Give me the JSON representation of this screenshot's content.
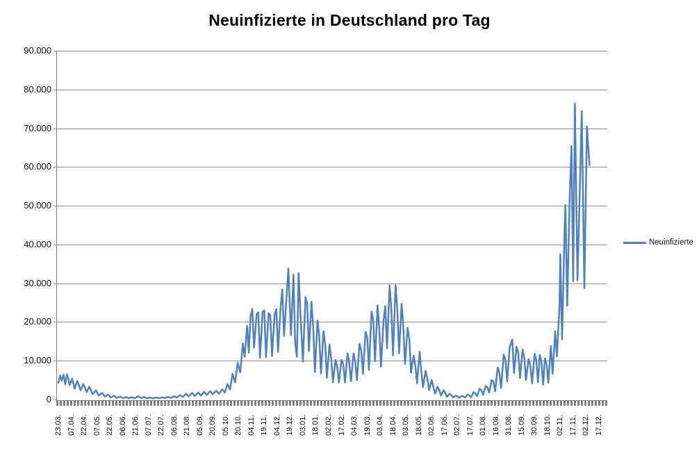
{
  "chart_data": {
    "type": "line",
    "title": "Neuinfizierte in Deutschland pro Tag",
    "xlabel": "",
    "ylabel": "",
    "ylim": [
      0,
      90000
    ],
    "ytick_labels": [
      "0",
      "10.000",
      "20.000",
      "30.000",
      "40.000",
      "50.000",
      "60.000",
      "70.000",
      "80.000",
      "90.000"
    ],
    "xtick_labels": [
      "23.03.",
      "07.04.",
      "22.04.",
      "07.05.",
      "22.05.",
      "06.06.",
      "21.06.",
      "07.07.",
      "22.07.",
      "06.08.",
      "21.08.",
      "05.09.",
      "20.09.",
      "05.10.",
      "20.10.",
      "04.11.",
      "19.11.",
      "04.12.",
      "19.12.",
      "03.01.",
      "18.01.",
      "02.02.",
      "17.02.",
      "04.03.",
      "19.03.",
      "03.04.",
      "18.04.",
      "03.05.",
      "18.05.",
      "02.06.",
      "17.06.",
      "02.07.",
      "17.07.",
      "01.08.",
      "16.08.",
      "31.08.",
      "15.09.",
      "30.09.",
      "18.10.",
      "02.11.",
      "17.11.",
      "02.12.",
      "17.12."
    ],
    "x_units_per_tick": 15,
    "x_total_units": 635,
    "grid": "horizontal",
    "legend_position": "right",
    "line_color": "#4f81bd",
    "gridline_color": "#8f8f8f",
    "axis_color": "#7f7f7f",
    "series": [
      {
        "name": "Neuinfizierte",
        "points": [
          [
            0,
            4300
          ],
          [
            2,
            6200
          ],
          [
            4,
            4900
          ],
          [
            6,
            6400
          ],
          [
            8,
            3900
          ],
          [
            10,
            6500
          ],
          [
            12,
            5000
          ],
          [
            13,
            3700
          ],
          [
            16,
            5400
          ],
          [
            19,
            2800
          ],
          [
            22,
            4800
          ],
          [
            26,
            2400
          ],
          [
            29,
            4000
          ],
          [
            33,
            1900
          ],
          [
            36,
            3300
          ],
          [
            40,
            1400
          ],
          [
            44,
            2400
          ],
          [
            47,
            1000
          ],
          [
            51,
            1700
          ],
          [
            54,
            750
          ],
          [
            58,
            1250
          ],
          [
            61,
            550
          ],
          [
            65,
            950
          ],
          [
            68,
            420
          ],
          [
            72,
            780
          ],
          [
            75,
            340
          ],
          [
            79,
            630
          ],
          [
            82,
            330
          ],
          [
            86,
            580
          ],
          [
            89,
            300
          ],
          [
            93,
            850
          ],
          [
            96,
            380
          ],
          [
            100,
            620
          ],
          [
            103,
            290
          ],
          [
            107,
            520
          ],
          [
            110,
            290
          ],
          [
            114,
            480
          ],
          [
            117,
            330
          ],
          [
            121,
            570
          ],
          [
            124,
            380
          ],
          [
            128,
            720
          ],
          [
            131,
            430
          ],
          [
            135,
            880
          ],
          [
            138,
            520
          ],
          [
            142,
            1150
          ],
          [
            145,
            680
          ],
          [
            149,
            1450
          ],
          [
            152,
            780
          ],
          [
            156,
            1700
          ],
          [
            159,
            920
          ],
          [
            163,
            1800
          ],
          [
            166,
            1020
          ],
          [
            170,
            1950
          ],
          [
            173,
            1200
          ],
          [
            177,
            2150
          ],
          [
            180,
            1350
          ],
          [
            184,
            2300
          ],
          [
            187,
            1500
          ],
          [
            191,
            2600
          ],
          [
            194,
            1800
          ],
          [
            197,
            4000
          ],
          [
            200,
            2600
          ],
          [
            203,
            6600
          ],
          [
            206,
            4400
          ],
          [
            209,
            9500
          ],
          [
            212,
            7000
          ],
          [
            215,
            14500
          ],
          [
            217,
            11000
          ],
          [
            220,
            19000
          ],
          [
            222,
            12100
          ],
          [
            224,
            21500
          ],
          [
            226,
            23400
          ],
          [
            228,
            13400
          ],
          [
            231,
            22000
          ],
          [
            233,
            22500
          ],
          [
            235,
            10800
          ],
          [
            238,
            22600
          ],
          [
            240,
            23000
          ],
          [
            242,
            10900
          ],
          [
            245,
            22300
          ],
          [
            247,
            21700
          ],
          [
            249,
            11200
          ],
          [
            252,
            22000
          ],
          [
            254,
            23300
          ],
          [
            256,
            12300
          ],
          [
            259,
            23700
          ],
          [
            261,
            28400
          ],
          [
            263,
            16400
          ],
          [
            266,
            26900
          ],
          [
            268,
            33800
          ],
          [
            270,
            22800
          ],
          [
            271,
            16600
          ],
          [
            274,
            32200
          ],
          [
            276,
            14500
          ],
          [
            278,
            11000
          ],
          [
            280,
            32600
          ],
          [
            282,
            22900
          ],
          [
            285,
            9800
          ],
          [
            288,
            26400
          ],
          [
            290,
            24700
          ],
          [
            292,
            12500
          ],
          [
            295,
            25200
          ],
          [
            297,
            18700
          ],
          [
            299,
            7100
          ],
          [
            302,
            20400
          ],
          [
            304,
            16400
          ],
          [
            306,
            6700
          ],
          [
            309,
            17600
          ],
          [
            311,
            14000
          ],
          [
            313,
            5600
          ],
          [
            316,
            14200
          ],
          [
            318,
            10500
          ],
          [
            320,
            4500
          ],
          [
            323,
            10200
          ],
          [
            325,
            8400
          ],
          [
            327,
            4400
          ],
          [
            330,
            10200
          ],
          [
            332,
            9200
          ],
          [
            334,
            4400
          ],
          [
            337,
            11900
          ],
          [
            339,
            9600
          ],
          [
            341,
            4700
          ],
          [
            344,
            11900
          ],
          [
            346,
            9600
          ],
          [
            348,
            5000
          ],
          [
            351,
            14400
          ],
          [
            353,
            12700
          ],
          [
            355,
            6600
          ],
          [
            358,
            17500
          ],
          [
            360,
            16000
          ],
          [
            362,
            7700
          ],
          [
            365,
            22700
          ],
          [
            367,
            20500
          ],
          [
            369,
            9900
          ],
          [
            372,
            24300
          ],
          [
            374,
            18100
          ],
          [
            376,
            8500
          ],
          [
            379,
            20400
          ],
          [
            381,
            24100
          ],
          [
            383,
            13200
          ],
          [
            386,
            29400
          ],
          [
            388,
            23800
          ],
          [
            390,
            11400
          ],
          [
            393,
            29500
          ],
          [
            395,
            23400
          ],
          [
            397,
            11900
          ],
          [
            400,
            24700
          ],
          [
            402,
            18900
          ],
          [
            404,
            9200
          ],
          [
            407,
            18500
          ],
          [
            409,
            15700
          ],
          [
            411,
            6900
          ],
          [
            414,
            11300
          ],
          [
            416,
            8800
          ],
          [
            418,
            4200
          ],
          [
            421,
            12300
          ],
          [
            423,
            7100
          ],
          [
            425,
            3200
          ],
          [
            428,
            7400
          ],
          [
            430,
            5400
          ],
          [
            432,
            2400
          ],
          [
            435,
            5000
          ],
          [
            437,
            3300
          ],
          [
            439,
            1500
          ],
          [
            442,
            3300
          ],
          [
            444,
            2300
          ],
          [
            446,
            1000
          ],
          [
            449,
            2400
          ],
          [
            451,
            1700
          ],
          [
            453,
            700
          ],
          [
            456,
            1500
          ],
          [
            458,
            1100
          ],
          [
            460,
            500
          ],
          [
            463,
            1000
          ],
          [
            465,
            800
          ],
          [
            467,
            440
          ],
          [
            470,
            950
          ],
          [
            472,
            750
          ],
          [
            474,
            500
          ],
          [
            477,
            1300
          ],
          [
            479,
            1000
          ],
          [
            481,
            600
          ],
          [
            484,
            1900
          ],
          [
            486,
            1550
          ],
          [
            488,
            850
          ],
          [
            491,
            2800
          ],
          [
            493,
            2400
          ],
          [
            495,
            1200
          ],
          [
            498,
            3500
          ],
          [
            500,
            3100
          ],
          [
            502,
            1800
          ],
          [
            505,
            5000
          ],
          [
            507,
            4700
          ],
          [
            509,
            2100
          ],
          [
            512,
            8300
          ],
          [
            514,
            7000
          ],
          [
            516,
            3000
          ],
          [
            519,
            11600
          ],
          [
            521,
            10300
          ],
          [
            523,
            4700
          ],
          [
            526,
            13500
          ],
          [
            529,
            15500
          ],
          [
            531,
            6800
          ],
          [
            534,
            13600
          ],
          [
            536,
            12000
          ],
          [
            538,
            5500
          ],
          [
            541,
            12900
          ],
          [
            543,
            10800
          ],
          [
            545,
            5000
          ],
          [
            548,
            10400
          ],
          [
            550,
            8900
          ],
          [
            552,
            4200
          ],
          [
            555,
            11800
          ],
          [
            557,
            10100
          ],
          [
            559,
            4500
          ],
          [
            561,
            11500
          ],
          [
            563,
            9700
          ],
          [
            565,
            3800
          ],
          [
            567,
            10600
          ],
          [
            569,
            9000
          ],
          [
            571,
            4300
          ],
          [
            574,
            13800
          ],
          [
            576,
            6600
          ],
          [
            579,
            17600
          ],
          [
            581,
            11100
          ],
          [
            584,
            24000
          ],
          [
            585,
            37500
          ],
          [
            587,
            15500
          ],
          [
            590,
            44000
          ],
          [
            591,
            50200
          ],
          [
            593,
            24200
          ],
          [
            596,
            52800
          ],
          [
            598,
            65400
          ],
          [
            600,
            30500
          ],
          [
            602,
            76400
          ],
          [
            605,
            30800
          ],
          [
            610,
            74400
          ],
          [
            613,
            28700
          ],
          [
            616,
            70500
          ],
          [
            619,
            60500
          ]
        ]
      }
    ]
  }
}
